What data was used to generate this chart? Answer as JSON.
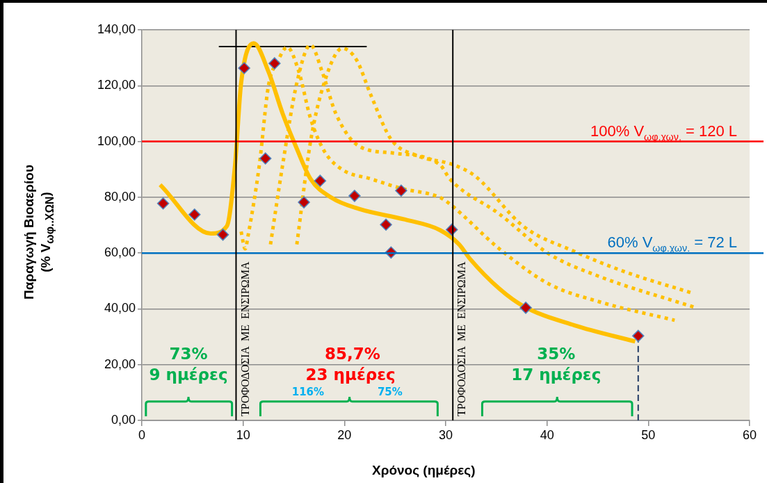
{
  "chart_data": {
    "type": "scatter",
    "xlabel": "Χρόνος (ημέρες)",
    "ylabel": "Παραγωγή Βιοαερίου\n(% V$_{ωφ..ΧΩΝ}$)",
    "xlim": [
      0,
      60
    ],
    "xticks": [
      0,
      10,
      20,
      30,
      40,
      50,
      60
    ],
    "ylim": [
      0,
      140
    ],
    "yticks": [
      {
        "value": 0,
        "label": "0,00"
      },
      {
        "value": 20,
        "label": "20,00"
      },
      {
        "value": 40,
        "label": "40,00"
      },
      {
        "value": 60,
        "label": "60,00"
      },
      {
        "value": 80,
        "label": "80,00"
      },
      {
        "value": 100,
        "label": "100,00"
      },
      {
        "value": 120,
        "label": "120,00"
      },
      {
        "value": 140,
        "label": "140,00"
      }
    ],
    "grid": "y",
    "legend": false,
    "marker": "diamond",
    "x": [
      2.1,
      5.2,
      8.0,
      10.1,
      12.2,
      13.1,
      16.0,
      17.6,
      21.0,
      24.1,
      24.6,
      25.6,
      30.6,
      37.9,
      49.0
    ],
    "series": [
      {
        "type": "scatter",
        "color": "#c00000",
        "values": [
          77.8,
          73.8,
          66.6,
          126.3,
          93.9,
          128.0,
          78.2,
          85.9,
          80.5,
          70.2,
          60.2,
          82.4,
          68.4,
          40.4,
          30.3
        ]
      },
      {
        "type": "line",
        "color": "#ffc000",
        "marker": "none",
        "line_style": "solid",
        "x": [
          1.8,
          6.8,
          8.4,
          9.2,
          9.8,
          11.05,
          12.5,
          13.9,
          15.3,
          16.65,
          18.7,
          21.45,
          26.0,
          29.45,
          31.3,
          32.4,
          35.3,
          37.7,
          42.7,
          48.7
        ],
        "values": [
          84.5,
          67.0,
          69.7,
          91.6,
          121.0,
          135.2,
          125.0,
          110.0,
          97.4,
          86.6,
          79.9,
          75.8,
          72.0,
          68.2,
          63.2,
          57.9,
          47.2,
          40.9,
          34.1,
          28.3
        ]
      },
      {
        "type": "line",
        "color": "#ffc000",
        "marker": "none",
        "line_style": "dotted",
        "x": [
          9.8,
          10.2,
          10.5,
          11.6,
          12.5,
          13.45,
          14.35,
          15.5,
          16.65,
          18.0,
          19.8,
          22.6,
          25.6,
          29.45,
          30.4,
          35.3,
          40.2,
          45.1,
          52.6
        ],
        "values": [
          67.7,
          61.5,
          66.5,
          91.6,
          120.0,
          129.0,
          133.8,
          125.0,
          108.3,
          96.6,
          89.9,
          86.6,
          83.2,
          79.9,
          77.6,
          61.5,
          48.9,
          42.6,
          35.9
        ]
      },
      {
        "type": "line",
        "color": "#ffc000",
        "marker": "none",
        "line_style": "dotted",
        "x": [
          12.7,
          13.9,
          15.3,
          16.65,
          17.8,
          19.15,
          21.45,
          24.9,
          29.45,
          30.4,
          35.3,
          40.2,
          45.1,
          54.7
        ],
        "values": [
          63.1,
          91.6,
          121.0,
          134.6,
          125.0,
          110.0,
          98.3,
          95.8,
          91.6,
          86.6,
          74.0,
          59.7,
          51.7,
          40.4
        ]
      },
      {
        "type": "line",
        "color": "#ffc000",
        "marker": "none",
        "line_style": "dotted",
        "x": [
          15.3,
          16.65,
          18.0,
          19.8,
          21.2,
          22.6,
          24.6,
          27.2,
          30.8,
          32.9,
          37.7,
          42.7,
          47.6,
          54.2
        ],
        "values": [
          63.1,
          99.9,
          121.0,
          133.4,
          129.2,
          116.7,
          100.8,
          94.9,
          91.6,
          87.6,
          69.5,
          60.6,
          53.4,
          45.8
        ]
      },
      {
        "type": "line",
        "color": "#000000",
        "marker": "none",
        "line_style": "solid",
        "x": [
          7.6,
          22.2
        ],
        "values": [
          134,
          134
        ]
      },
      {
        "type": "line",
        "color": "#1f3864",
        "marker": "none",
        "line_style": "dashed",
        "x": [
          49,
          49
        ],
        "values": [
          0,
          30
        ]
      }
    ],
    "ref_lines": [
      {
        "axis": "y",
        "value": 100,
        "label": "100% V$_{ωφ.χων.}$ = 120 L",
        "color": "#ff0000"
      },
      {
        "axis": "y",
        "value": 60,
        "label": "60% V$_{ωφ.χων.}$ = 72 L",
        "color": "#0070c0"
      },
      {
        "axis": "x",
        "value": 9.3,
        "label": "ΤΡΟΦΟΔΟΣΙΑ ΜΕ ΕΝΣΙΡΩΜΑ",
        "color": "#000000"
      },
      {
        "axis": "x",
        "value": 30.7,
        "label": "ΤΡΟΦΟΔΟΣΙΑ ΜΕ ΕΝΣΙΡΩΜΑ",
        "color": "#000000"
      }
    ],
    "annotations": [
      "73%",
      "9 ημέρες",
      "85,7%",
      "23 ημέρες",
      "116%",
      "75%",
      "35%",
      "17 ημέρες"
    ]
  }
}
